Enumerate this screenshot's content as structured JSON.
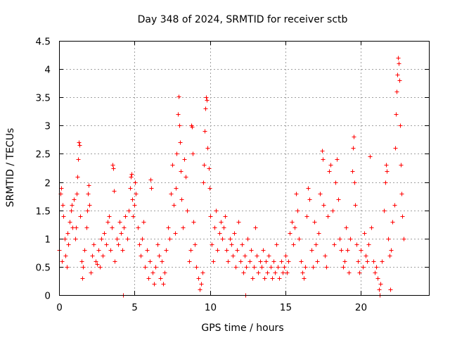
{
  "chart_data": {
    "type": "scatter",
    "title": "Day 348 of 2024, SRMTID for receiver sctb",
    "xlabel": "GPS time / hours",
    "ylabel": "SRMTID / TECUs",
    "xlim": [
      0,
      24.5
    ],
    "ylim": [
      0,
      4.5
    ],
    "xticks": [
      0,
      5,
      10,
      15,
      20
    ],
    "xtick_labels": [
      "0",
      "5",
      "10",
      "15",
      "20"
    ],
    "yticks": [
      0,
      0.5,
      1,
      1.5,
      2,
      2.5,
      3,
      3.5,
      4,
      4.5
    ],
    "ytick_labels": [
      "0",
      "0.5",
      "1",
      "1.5",
      "2",
      "2.5",
      "3",
      "3.5",
      "4",
      "4.5"
    ],
    "grid": true,
    "marker": "+",
    "color": "#ff0000",
    "series": [
      {
        "name": "SRMTID",
        "points": [
          [
            0.0,
            0.8
          ],
          [
            0.1,
            1.8
          ],
          [
            0.15,
            1.9
          ],
          [
            0.2,
            0.6
          ],
          [
            0.25,
            1.6
          ],
          [
            0.3,
            1.4
          ],
          [
            0.35,
            1.0
          ],
          [
            0.4,
            0.7
          ],
          [
            0.5,
            0.5
          ],
          [
            0.55,
            1.1
          ],
          [
            0.6,
            0.9
          ],
          [
            0.7,
            1.3
          ],
          [
            0.8,
            1.5
          ],
          [
            0.85,
            1.6
          ],
          [
            0.9,
            1.2
          ],
          [
            1.0,
            1.7
          ],
          [
            1.05,
            1.0
          ],
          [
            1.1,
            1.2
          ],
          [
            1.15,
            1.8
          ],
          [
            1.2,
            2.1
          ],
          [
            1.25,
            2.4
          ],
          [
            1.3,
            2.7
          ],
          [
            1.35,
            2.65
          ],
          [
            1.4,
            1.4
          ],
          [
            1.5,
            0.6
          ],
          [
            1.55,
            0.3
          ],
          [
            1.6,
            0.5
          ],
          [
            1.7,
            0.8
          ],
          [
            1.8,
            1.2
          ],
          [
            1.85,
            1.5
          ],
          [
            1.9,
            1.8
          ],
          [
            1.95,
            1.95
          ],
          [
            2.0,
            1.6
          ],
          [
            2.1,
            0.4
          ],
          [
            2.2,
            0.7
          ],
          [
            2.3,
            0.9
          ],
          [
            2.4,
            0.6
          ],
          [
            2.5,
            0.55
          ],
          [
            2.6,
            0.8
          ],
          [
            2.7,
            0.5
          ],
          [
            2.8,
            1.0
          ],
          [
            2.9,
            0.7
          ],
          [
            3.0,
            1.1
          ],
          [
            3.1,
            0.9
          ],
          [
            3.2,
            1.3
          ],
          [
            3.3,
            1.4
          ],
          [
            3.4,
            0.8
          ],
          [
            3.5,
            1.2
          ],
          [
            3.55,
            2.3
          ],
          [
            3.6,
            2.25
          ],
          [
            3.65,
            1.85
          ],
          [
            3.7,
            0.6
          ],
          [
            3.8,
            1.0
          ],
          [
            3.9,
            0.9
          ],
          [
            4.0,
            1.3
          ],
          [
            4.1,
            1.1
          ],
          [
            4.2,
            0.8
          ],
          [
            4.25,
            0.0
          ],
          [
            4.3,
            1.2
          ],
          [
            4.4,
            1.4
          ],
          [
            4.5,
            1.0
          ],
          [
            4.6,
            1.5
          ],
          [
            4.7,
            1.9
          ],
          [
            4.75,
            2.1
          ],
          [
            4.8,
            2.15
          ],
          [
            4.85,
            1.7
          ],
          [
            4.9,
            1.4
          ],
          [
            5.0,
            1.6
          ],
          [
            5.05,
            2.0
          ],
          [
            5.1,
            1.8
          ],
          [
            5.2,
            1.2
          ],
          [
            5.3,
            0.9
          ],
          [
            5.4,
            0.7
          ],
          [
            5.5,
            1.0
          ],
          [
            5.6,
            1.3
          ],
          [
            5.7,
            0.5
          ],
          [
            5.8,
            0.8
          ],
          [
            5.9,
            0.3
          ],
          [
            6.0,
            0.6
          ],
          [
            6.05,
            2.05
          ],
          [
            6.1,
            1.9
          ],
          [
            6.2,
            0.4
          ],
          [
            6.3,
            0.2
          ],
          [
            6.4,
            0.5
          ],
          [
            6.5,
            0.9
          ],
          [
            6.6,
            0.7
          ],
          [
            6.7,
            0.3
          ],
          [
            6.8,
            0.6
          ],
          [
            6.9,
            0.2
          ],
          [
            7.0,
            0.4
          ],
          [
            7.1,
            0.8
          ],
          [
            7.2,
            1.2
          ],
          [
            7.3,
            1.0
          ],
          [
            7.4,
            1.8
          ],
          [
            7.5,
            2.3
          ],
          [
            7.6,
            1.6
          ],
          [
            7.7,
            1.1
          ],
          [
            7.75,
            1.9
          ],
          [
            7.8,
            2.5
          ],
          [
            7.85,
            3.2
          ],
          [
            7.9,
            3.52
          ],
          [
            7.95,
            3.0
          ],
          [
            8.0,
            2.7
          ],
          [
            8.05,
            2.2
          ],
          [
            8.1,
            1.7
          ],
          [
            8.2,
            1.2
          ],
          [
            8.3,
            2.4
          ],
          [
            8.4,
            2.1
          ],
          [
            8.5,
            1.5
          ],
          [
            8.6,
            0.6
          ],
          [
            8.7,
            0.8
          ],
          [
            8.75,
            3.0
          ],
          [
            8.8,
            2.98
          ],
          [
            8.85,
            2.5
          ],
          [
            8.9,
            1.3
          ],
          [
            9.0,
            0.9
          ],
          [
            9.1,
            0.5
          ],
          [
            9.2,
            0.3
          ],
          [
            9.3,
            0.1
          ],
          [
            9.4,
            0.2
          ],
          [
            9.5,
            0.4
          ],
          [
            9.55,
            2.0
          ],
          [
            9.6,
            2.3
          ],
          [
            9.65,
            2.9
          ],
          [
            9.7,
            3.3
          ],
          [
            9.75,
            3.5
          ],
          [
            9.8,
            3.45
          ],
          [
            9.85,
            2.6
          ],
          [
            9.9,
            2.25
          ],
          [
            9.95,
            1.9
          ],
          [
            10.0,
            1.4
          ],
          [
            10.1,
            0.9
          ],
          [
            10.2,
            0.6
          ],
          [
            10.3,
            1.2
          ],
          [
            10.4,
            1.5
          ],
          [
            10.5,
            0.8
          ],
          [
            10.6,
            1.1
          ],
          [
            10.7,
            1.3
          ],
          [
            10.8,
            1.0
          ],
          [
            10.9,
            1.2
          ],
          [
            11.0,
            1.4
          ],
          [
            11.1,
            0.8
          ],
          [
            11.2,
            0.6
          ],
          [
            11.3,
            1.0
          ],
          [
            11.4,
            0.9
          ],
          [
            11.5,
            0.7
          ],
          [
            11.6,
            1.1
          ],
          [
            11.7,
            0.5
          ],
          [
            11.8,
            0.8
          ],
          [
            11.9,
            1.3
          ],
          [
            12.0,
            0.6
          ],
          [
            12.1,
            0.9
          ],
          [
            12.2,
            0.4
          ],
          [
            12.3,
            0.7
          ],
          [
            12.35,
            0.0
          ],
          [
            12.4,
            0.5
          ],
          [
            12.5,
            1.0
          ],
          [
            12.6,
            0.6
          ],
          [
            12.7,
            0.8
          ],
          [
            12.8,
            0.3
          ],
          [
            12.9,
            0.5
          ],
          [
            13.0,
            1.2
          ],
          [
            13.1,
            0.7
          ],
          [
            13.2,
            0.4
          ],
          [
            13.3,
            0.6
          ],
          [
            13.4,
            0.5
          ],
          [
            13.5,
            0.8
          ],
          [
            13.6,
            0.3
          ],
          [
            13.7,
            0.6
          ],
          [
            13.8,
            0.4
          ],
          [
            13.9,
            0.7
          ],
          [
            14.0,
            0.5
          ],
          [
            14.1,
            0.3
          ],
          [
            14.2,
            0.6
          ],
          [
            14.3,
            0.4
          ],
          [
            14.4,
            0.9
          ],
          [
            14.5,
            0.5
          ],
          [
            14.6,
            0.3
          ],
          [
            14.7,
            0.6
          ],
          [
            14.8,
            0.4
          ],
          [
            14.9,
            0.5
          ],
          [
            15.0,
            0.7
          ],
          [
            15.1,
            0.4
          ],
          [
            15.2,
            0.6
          ],
          [
            15.3,
            1.1
          ],
          [
            15.4,
            1.3
          ],
          [
            15.5,
            0.9
          ],
          [
            15.6,
            1.2
          ],
          [
            15.7,
            1.8
          ],
          [
            15.8,
            1.5
          ],
          [
            15.9,
            1.0
          ],
          [
            16.0,
            0.6
          ],
          [
            16.1,
            0.4
          ],
          [
            16.2,
            0.3
          ],
          [
            16.3,
            0.5
          ],
          [
            16.4,
            1.4
          ],
          [
            16.5,
            1.9
          ],
          [
            16.6,
            1.7
          ],
          [
            16.7,
            0.8
          ],
          [
            16.8,
            0.5
          ],
          [
            16.9,
            1.3
          ],
          [
            17.0,
            0.9
          ],
          [
            17.1,
            0.6
          ],
          [
            17.2,
            1.1
          ],
          [
            17.3,
            1.8
          ],
          [
            17.4,
            2.55
          ],
          [
            17.45,
            2.4
          ],
          [
            17.5,
            1.6
          ],
          [
            17.6,
            0.7
          ],
          [
            17.7,
            0.5
          ],
          [
            17.8,
            1.4
          ],
          [
            17.9,
            2.2
          ],
          [
            18.0,
            2.3
          ],
          [
            18.1,
            1.5
          ],
          [
            18.2,
            0.9
          ],
          [
            18.3,
            2.0
          ],
          [
            18.4,
            2.4
          ],
          [
            18.5,
            1.7
          ],
          [
            18.6,
            1.0
          ],
          [
            18.7,
            0.8
          ],
          [
            18.8,
            0.5
          ],
          [
            18.9,
            0.6
          ],
          [
            19.0,
            1.2
          ],
          [
            19.1,
            0.8
          ],
          [
            19.2,
            0.4
          ],
          [
            19.3,
            1.0
          ],
          [
            19.4,
            2.2
          ],
          [
            19.45,
            2.6
          ],
          [
            19.5,
            2.8
          ],
          [
            19.55,
            2.0
          ],
          [
            19.6,
            1.6
          ],
          [
            19.7,
            0.9
          ],
          [
            19.8,
            0.6
          ],
          [
            19.9,
            0.4
          ],
          [
            20.0,
            0.8
          ],
          [
            20.1,
            0.5
          ],
          [
            20.2,
            1.1
          ],
          [
            20.3,
            0.7
          ],
          [
            20.4,
            0.6
          ],
          [
            20.5,
            0.9
          ],
          [
            20.6,
            2.45
          ],
          [
            20.7,
            1.2
          ],
          [
            20.8,
            0.6
          ],
          [
            20.9,
            0.4
          ],
          [
            21.0,
            0.5
          ],
          [
            21.1,
            0.3
          ],
          [
            21.2,
            0.1
          ],
          [
            21.25,
            0.0
          ],
          [
            21.3,
            0.2
          ],
          [
            21.4,
            0.6
          ],
          [
            21.5,
            1.5
          ],
          [
            21.6,
            2.0
          ],
          [
            21.65,
            2.3
          ],
          [
            21.7,
            2.2
          ],
          [
            21.8,
            1.0
          ],
          [
            21.9,
            0.7
          ],
          [
            21.95,
            0.1
          ],
          [
            22.0,
            0.8
          ],
          [
            22.1,
            1.3
          ],
          [
            22.2,
            1.6
          ],
          [
            22.25,
            2.6
          ],
          [
            22.3,
            3.2
          ],
          [
            22.35,
            3.6
          ],
          [
            22.4,
            3.9
          ],
          [
            22.45,
            4.2
          ],
          [
            22.5,
            4.1
          ],
          [
            22.55,
            3.8
          ],
          [
            22.6,
            3.0
          ],
          [
            22.65,
            2.3
          ],
          [
            22.7,
            1.8
          ],
          [
            22.75,
            1.4
          ],
          [
            22.8,
            1.0
          ]
        ]
      }
    ]
  }
}
